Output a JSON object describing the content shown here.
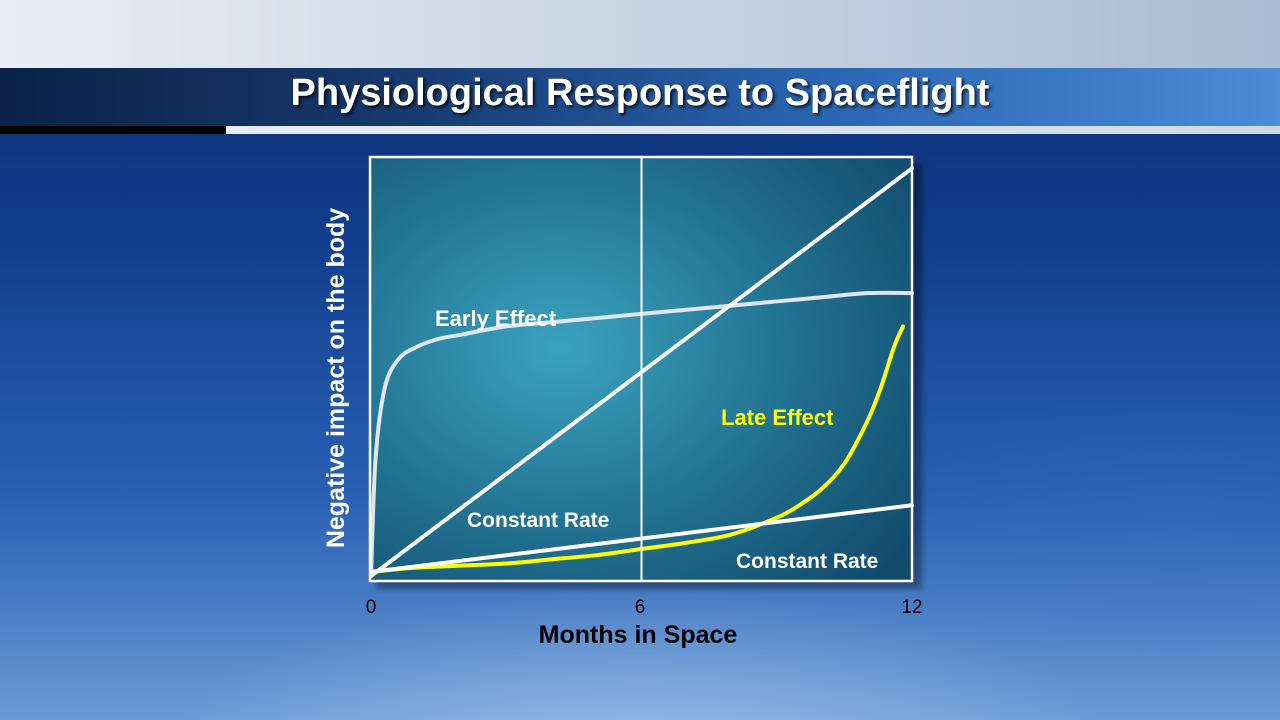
{
  "header": {
    "title": "Physiological Response to Spaceflight"
  },
  "chart_data": {
    "type": "line",
    "xlabel": "Months in Space",
    "ylabel": "Negative impact on the body",
    "xlim": [
      0,
      12
    ],
    "ylim": [
      0,
      1
    ],
    "xticks": [
      0,
      6,
      12
    ],
    "x_tick_labels": [
      "0",
      "6",
      "12"
    ],
    "reference_line_x": 6,
    "grid": false,
    "colors": {
      "white_series": "#ffffff",
      "early_series": "#dfe6ee",
      "late_series": "#ffff00",
      "plot_bg": "#2a7ea0"
    },
    "series": [
      {
        "name": "Early Effect",
        "color": "#dfe6ee",
        "x": [
          0,
          0.1,
          0.3,
          0.6,
          1,
          1.5,
          2,
          3,
          4,
          5,
          6,
          7,
          8,
          9,
          10,
          11,
          12
        ],
        "y": [
          0,
          0.28,
          0.45,
          0.52,
          0.55,
          0.57,
          0.58,
          0.6,
          0.61,
          0.62,
          0.63,
          0.64,
          0.65,
          0.66,
          0.67,
          0.68,
          0.68
        ]
      },
      {
        "name": "Constant Rate",
        "color": "#ffffff",
        "x": [
          0,
          12
        ],
        "y": [
          0,
          0.98
        ]
      },
      {
        "name": "Late Effect",
        "color": "#ffff00",
        "x": [
          0,
          1,
          2,
          3,
          4,
          5,
          6,
          7,
          8,
          9,
          9.5,
          10,
          10.5,
          11,
          11.3,
          11.6,
          11.8
        ],
        "y": [
          0.01,
          0.02,
          0.025,
          0.03,
          0.04,
          0.05,
          0.065,
          0.08,
          0.1,
          0.14,
          0.17,
          0.21,
          0.27,
          0.37,
          0.45,
          0.55,
          0.6
        ]
      },
      {
        "name": "Constant Rate",
        "color": "#ffffff",
        "x": [
          0,
          12
        ],
        "y": [
          0.01,
          0.17
        ]
      }
    ],
    "annotations": [
      {
        "text": "Early Effect",
        "color": "#ffffff"
      },
      {
        "text": "Constant Rate",
        "color": "#ffffff"
      },
      {
        "text": "Late Effect",
        "color": "#ffff00"
      },
      {
        "text": "Constant Rate",
        "color": "#ffffff"
      }
    ]
  }
}
